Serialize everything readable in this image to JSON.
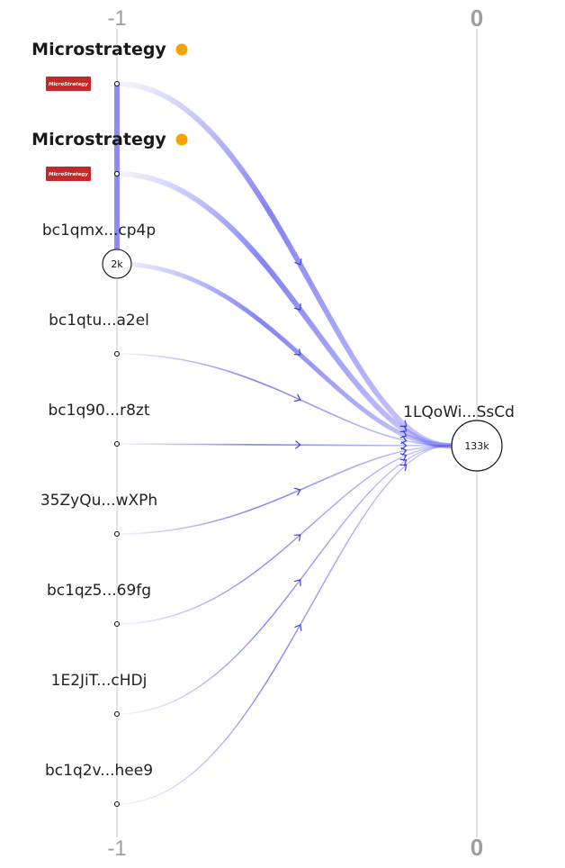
{
  "axis": {
    "left_top": "-1",
    "left_bottom": "-1",
    "right_top": "0",
    "right_bottom": "0"
  },
  "sources": [
    {
      "id": "src-1",
      "label": "Microstrategy",
      "entity": true,
      "logo_text": "MicroStrategy",
      "dot_color": "#f5a300",
      "weight": 6
    },
    {
      "id": "src-2",
      "label": "Microstrategy",
      "entity": true,
      "logo_text": "MicroStrategy",
      "dot_color": "#f5a300",
      "weight": 6
    },
    {
      "id": "src-3",
      "label": "bc1qmx...cp4p",
      "entity": false,
      "badge": "2k",
      "weight": 5
    },
    {
      "id": "src-4",
      "label": "bc1qtu...a2el",
      "entity": false,
      "weight": 1.6
    },
    {
      "id": "src-5",
      "label": "bc1q90...r8zt",
      "entity": false,
      "weight": 1.6
    },
    {
      "id": "src-6",
      "label": "35ZyQu...wXPh",
      "entity": false,
      "weight": 1.6
    },
    {
      "id": "src-7",
      "label": "bc1qz5...69fg",
      "entity": false,
      "weight": 1.4
    },
    {
      "id": "src-8",
      "label": "1E2JiT...cHDj",
      "entity": false,
      "weight": 1.4
    },
    {
      "id": "src-9",
      "label": "bc1q2v...hee9",
      "entity": false,
      "weight": 1.4
    }
  ],
  "target": {
    "id": "tgt",
    "label": "1LQoWi...SsCd",
    "badge": "133k"
  },
  "colors": {
    "flow": "#5b5bef",
    "flow_light": "#e3e3ff",
    "axis_line": "#d9d9d9",
    "logo_bg": "#c62828",
    "entity_dot": "#f5a300"
  }
}
